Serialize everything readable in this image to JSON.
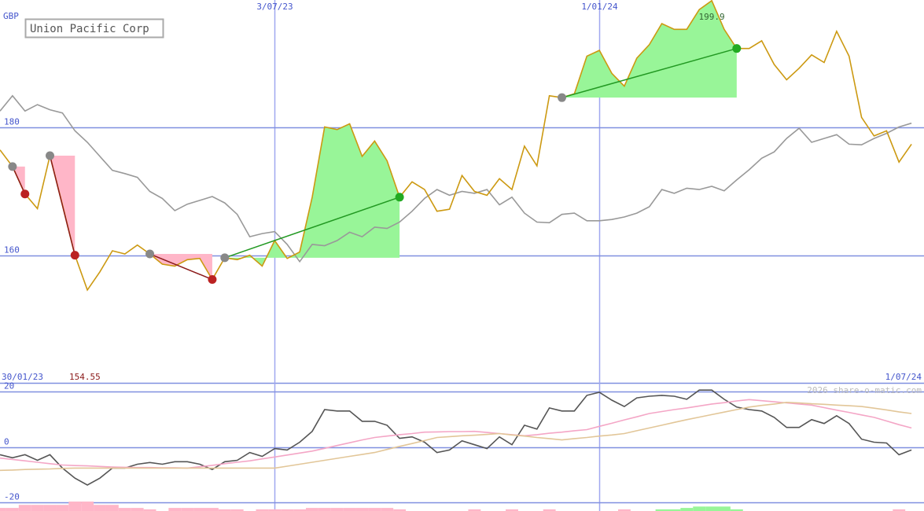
{
  "chart_data": [
    {
      "type": "line",
      "legend": "Union Pacific Corp",
      "ylabel": "GBP",
      "max_label": "199.9",
      "min_label": "154.55",
      "xlim": [
        "30/01/23",
        "1/07/24"
      ],
      "xticks": [
        "3/07/23",
        "1/01/24"
      ],
      "ylim": [
        140,
        200
      ],
      "yticks": [
        160,
        180
      ],
      "grid": true,
      "x": [
        "30/01/23",
        "6/02/23",
        "13/02/23",
        "20/02/23",
        "27/02/23",
        "6/03/23",
        "13/03/23",
        "20/03/23",
        "27/03/23",
        "3/04/23",
        "10/04/23",
        "17/04/23",
        "24/04/23",
        "1/05/23",
        "8/05/23",
        "15/05/23",
        "22/05/23",
        "29/05/23",
        "5/06/23",
        "12/06/23",
        "19/06/23",
        "26/06/23",
        "3/07/23",
        "10/07/23",
        "17/07/23",
        "24/07/23",
        "31/07/23",
        "7/08/23",
        "14/08/23",
        "21/08/23",
        "28/08/23",
        "4/09/23",
        "11/09/23",
        "18/09/23",
        "25/09/23",
        "2/10/23",
        "9/10/23",
        "16/10/23",
        "23/10/23",
        "30/10/23",
        "6/11/23",
        "13/11/23",
        "20/11/23",
        "27/11/23",
        "4/12/23",
        "11/12/23",
        "18/12/23",
        "25/12/23",
        "1/01/24",
        "8/01/24",
        "15/01/24",
        "22/01/24",
        "29/01/24",
        "5/02/24",
        "12/02/24",
        "19/02/24",
        "26/02/24",
        "4/03/24",
        "11/03/24",
        "18/03/24",
        "25/03/24",
        "1/04/24",
        "8/04/24",
        "15/04/24",
        "22/04/24",
        "29/04/24",
        "6/05/24",
        "13/05/24",
        "20/05/24",
        "27/05/24",
        "3/06/24",
        "10/06/24",
        "17/06/24",
        "24/06/24"
      ],
      "series": [
        {
          "name": "Union Pacific Corp",
          "color": "#cc9911",
          "values": [
            176.5,
            173.9,
            169.6,
            167.3,
            175.6,
            167.9,
            160,
            154.55,
            157.4,
            160.7,
            160.2,
            161.6,
            160.2,
            158.6,
            158.3,
            159.3,
            159.5,
            156.2,
            159.6,
            159.3,
            160,
            158.3,
            162.3,
            159.5,
            160.5,
            169.1,
            180.1,
            179.7,
            180.6,
            175.5,
            177.9,
            174.8,
            169.1,
            171.5,
            170.3,
            166.9,
            167.2,
            172.5,
            170,
            169.4,
            172,
            170.3,
            177.1,
            174,
            185,
            184.7,
            185.3,
            191.2,
            192.1,
            188.5,
            186.5,
            190.9,
            193,
            196.3,
            195.4,
            195.4,
            198.5,
            199.9,
            195.4,
            192.4,
            192.4,
            193.6,
            189.9,
            187.5,
            189.3,
            191.4,
            190.2,
            195.1,
            191.2,
            181.6,
            178.7,
            179.5,
            174.6,
            177.4
          ]
        },
        {
          "color": "#999999",
          "values": [
            182.6,
            185,
            182.6,
            183.6,
            182.8,
            182.3,
            179.5,
            177.7,
            175.5,
            173.3,
            172.8,
            172.2,
            170,
            168.9,
            167,
            168,
            168.6,
            169.2,
            168.2,
            166.4,
            162.9,
            163.4,
            163.7,
            161.7,
            159,
            161.7,
            161.5,
            162.3,
            163.6,
            162.9,
            164.4,
            164.2,
            165.2,
            166.9,
            168.9,
            170.3,
            169.4,
            170,
            169.7,
            170.3,
            167.9,
            169.1,
            166.6,
            165.2,
            165.1,
            166.4,
            166.6,
            165.4,
            165.4,
            165.6,
            166,
            166.6,
            167.6,
            170.3,
            169.7,
            170.5,
            170.3,
            170.8,
            170.1,
            171.8,
            173.4,
            175.2,
            176.2,
            178.3,
            179.9,
            177.7,
            178.3,
            178.9,
            177.4,
            177.3,
            178.3,
            179.1,
            180.1,
            180.7
          ]
        }
      ],
      "trades": [
        {
          "entry": "6/02/23",
          "exit": "13/02/23",
          "color": "#bb2222",
          "line": "#8b1a1a",
          "fill": "#ffb6c8"
        },
        {
          "entry": "27/02/23",
          "exit": "13/03/23",
          "color": "#bb2222",
          "line": "#8b1a1a",
          "fill": "#ffb6c8"
        },
        {
          "entry": "24/04/23",
          "exit": "29/05/23",
          "color": "#bb2222",
          "line": "#8b1a1a",
          "fill": "#ffb6c8"
        },
        {
          "entry": "5/06/23",
          "exit": "11/09/23",
          "color": "#22aa22",
          "line": "#229922",
          "fill": "#98f598"
        },
        {
          "entry": "11/12/23",
          "exit": "18/03/24",
          "color": "#22aa22",
          "line": "#229922",
          "fill": "#98f598"
        }
      ]
    },
    {
      "type": "line",
      "credit": "2026 share-o-matic.com",
      "ylim": [
        -23,
        23
      ],
      "yticks": [
        -20,
        0,
        20
      ],
      "series": [
        {
          "color": "#555555",
          "values": [
            -2.8,
            -3.9,
            -2.8,
            -4.8,
            -2.8,
            -7.6,
            -11.2,
            -13.7,
            -11.2,
            -7.6,
            -7.6,
            -6.2,
            -5.6,
            -6.2,
            -5.3,
            -5.3,
            -6.2,
            -8.1,
            -5.3,
            -4.8,
            -2,
            -3.4,
            -0.6,
            -1.1,
            1.7,
            5.6,
            13.4,
            12.9,
            12.9,
            9.2,
            9.2,
            7.8,
            3.1,
            3.6,
            1.7,
            -2,
            -1.1,
            2.2,
            0.8,
            -0.6,
            3.6,
            0.8,
            7.8,
            6.4,
            14,
            12.9,
            12.9,
            18.5,
            19.6,
            16.8,
            14.5,
            17.6,
            18.2,
            18.5,
            18.2,
            17.1,
            20.4,
            20.4,
            17.1,
            14.3,
            13.4,
            12.9,
            10.6,
            7,
            7,
            9.8,
            8.4,
            11.2,
            8.4,
            2.8,
            1.7,
            1.4,
            -2.8,
            -1.1
          ]
        },
        {
          "color": "#f4a6c6",
          "values": [
            -4,
            -4.5,
            -5,
            -5.5,
            -6,
            -6.5,
            -6.7,
            -6.8,
            -7,
            -7.2,
            -7.3,
            -7.4,
            -7.4,
            -7.5,
            -7.5,
            -7.6,
            -7.1,
            -6.6,
            -6,
            -5.5,
            -5,
            -4.3,
            -3.6,
            -2.9,
            -2.2,
            -1.5,
            -0.5,
            0.5,
            1.5,
            2.5,
            3.4,
            3.9,
            4.4,
            4.8,
            5.3,
            5.4,
            5.5,
            5.5,
            5.6,
            5.2,
            4.8,
            4.4,
            4,
            4.4,
            4.9,
            5.3,
            5.8,
            6.2,
            7.4,
            8.5,
            9.7,
            10.8,
            12,
            12.7,
            13.4,
            14,
            14.7,
            15.4,
            15.9,
            16.5,
            17,
            16.6,
            16.2,
            15.8,
            15.4,
            15,
            14.1,
            13.2,
            12.4,
            11.5,
            10.6,
            9.3,
            8,
            6.8
          ]
        },
        {
          "color": "#e2c698",
          "values": [
            -8.4,
            -8.3,
            -8.1,
            -8,
            -7.9,
            -7.7,
            -7.6,
            -7.6,
            -7.6,
            -7.6,
            -7.6,
            -7.6,
            -7.6,
            -7.6,
            -7.6,
            -7.6,
            -7.6,
            -7.6,
            -7.6,
            -7.6,
            -7.6,
            -7.6,
            -7.6,
            -6.9,
            -6.2,
            -5.5,
            -4.8,
            -4.1,
            -3.4,
            -2.7,
            -2,
            -0.9,
            0.2,
            1.2,
            2.3,
            3.4,
            3.7,
            4,
            4.2,
            4.5,
            4.8,
            4.3,
            3.9,
            3.4,
            3,
            2.5,
            3,
            3.4,
            3.9,
            4.3,
            4.8,
            5.8,
            6.8,
            7.8,
            8.8,
            9.8,
            10.7,
            11.6,
            12.5,
            13.4,
            14.3,
            14.9,
            15.4,
            16,
            15.8,
            15.5,
            15.3,
            15,
            14.8,
            14.5,
            13.9,
            13.3,
            12.6,
            12
          ]
        }
      ],
      "bars": [
        {
          "color": "#ffb6c8",
          "values": [
            -21.9,
            -21.9,
            -20.8,
            -20.8,
            -20.8,
            -20.8,
            -19.6,
            -19.6,
            -20.8,
            -20.8,
            -21.9,
            -21.9,
            -22.4,
            null,
            -21.9,
            -21.9,
            -21.9,
            -21.9,
            -22.4,
            -22.4,
            null,
            -22.4,
            -22.4,
            -22.4,
            -22.4,
            -21.9,
            -21.9,
            -21.9,
            -21.9,
            -21.9,
            -21.9,
            -21.9,
            -22.4,
            null,
            null,
            null,
            null,
            null,
            -22.4,
            null,
            null,
            -22.4,
            null,
            null,
            -22.4,
            null,
            null,
            null,
            null,
            null,
            -22.4,
            null,
            null,
            null,
            null,
            null,
            null,
            null,
            null,
            null,
            null,
            null,
            null,
            null,
            null,
            null,
            null,
            null,
            null,
            null,
            null,
            null,
            -22.4,
            null
          ]
        },
        {
          "color": "#98f598",
          "values": [
            null,
            null,
            null,
            null,
            null,
            null,
            null,
            null,
            null,
            null,
            null,
            null,
            null,
            null,
            null,
            null,
            null,
            null,
            null,
            null,
            null,
            null,
            null,
            null,
            null,
            null,
            null,
            null,
            null,
            null,
            null,
            null,
            null,
            null,
            null,
            null,
            null,
            null,
            null,
            null,
            null,
            null,
            null,
            null,
            null,
            null,
            null,
            null,
            null,
            null,
            null,
            null,
            null,
            -22.4,
            -22.4,
            -21.9,
            -21.4,
            -21.4,
            -21.4,
            -22.4,
            null,
            null,
            null,
            null,
            null,
            null,
            null,
            null,
            null,
            null,
            null,
            null,
            null,
            null
          ]
        }
      ]
    }
  ]
}
